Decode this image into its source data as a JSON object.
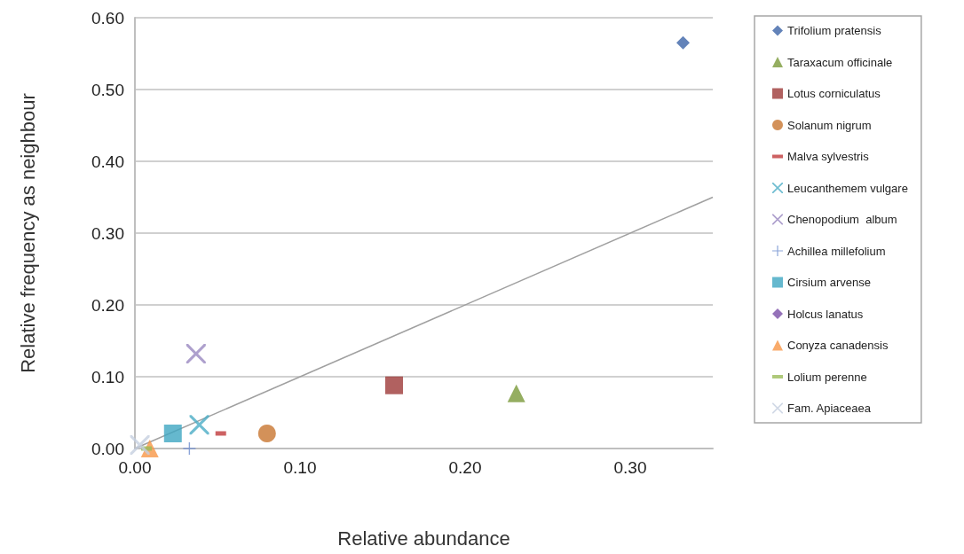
{
  "chart_data": {
    "type": "scatter",
    "xlabel": "Relative abundance",
    "ylabel": "Relative frequency as neighbour",
    "xlim": [
      0,
      0.35
    ],
    "ylim": [
      0,
      0.6
    ],
    "xticks": [
      {
        "value": 0,
        "label": "0.00"
      },
      {
        "value": 0.1,
        "label": "0.10"
      },
      {
        "value": 0.2,
        "label": "0.20"
      },
      {
        "value": 0.3,
        "label": "0.30"
      }
    ],
    "yticks": [
      {
        "value": 0,
        "label": "0.00"
      },
      {
        "value": 0.1,
        "label": "0.10"
      },
      {
        "value": 0.2,
        "label": "0.20"
      },
      {
        "value": 0.3,
        "label": "0.30"
      },
      {
        "value": 0.4,
        "label": "0.40"
      },
      {
        "value": 0.5,
        "label": "0.50"
      },
      {
        "value": 0.6,
        "label": "0.60"
      }
    ],
    "grid": "y",
    "legend": "right",
    "series": [
      {
        "name": "Trifolium pratensis",
        "color": "#3c64a8",
        "marker": "diamond",
        "x": [
          0.332
        ],
        "values": [
          0.565
        ]
      },
      {
        "name": "Taraxacum officinale",
        "color": "#7a9a3a",
        "marker": "triangle",
        "x": [
          0.231
        ],
        "values": [
          0.077
        ]
      },
      {
        "name": "Lotus corniculatus",
        "color": "#9e3a38",
        "marker": "square",
        "x": [
          0.157
        ],
        "values": [
          0.088
        ]
      },
      {
        "name": "Solanum nigrum",
        "color": "#c87530",
        "marker": "circle",
        "x": [
          0.08
        ],
        "values": [
          0.021
        ]
      },
      {
        "name": "Malva sylvestris",
        "color": "#c0393b",
        "x": [
          0.052
        ],
        "values": [
          0.021
        ]
      },
      {
        "name": "Leucanthemem vulgare",
        "color": "#4bacc6",
        "marker": "cross",
        "x": [
          0.039
        ],
        "values": [
          0.033
        ]
      },
      {
        "name": "Chenopodium  album",
        "color": "#9a88c0",
        "marker": "cross",
        "x": [
          0.037
        ],
        "values": [
          0.132
        ]
      },
      {
        "name": "Achillea millefolium",
        "color": "#6f8fd0",
        "marker": "plus",
        "x": [
          0.033
        ],
        "values": [
          0.0
        ]
      },
      {
        "name": "Cirsium arvense",
        "color": "#3ea6c2",
        "marker": "square",
        "x": [
          0.023
        ],
        "values": [
          0.021
        ]
      },
      {
        "name": "Holcus lanatus",
        "color": "#7a4fa8",
        "marker": "diamond",
        "x": [
          null
        ],
        "values": [
          null
        ]
      },
      {
        "name": "Conyza canadensis",
        "color": "#f79646",
        "marker": "triangle",
        "x": [
          0.009
        ],
        "values": [
          0.0
        ]
      },
      {
        "name": "Lolium perenne",
        "color": "#9bbb59",
        "x": [
          0.007
        ],
        "values": [
          0.0
        ]
      },
      {
        "name": "Fam. Apiaceaea",
        "color": "#c5cfe0",
        "marker": "cross",
        "x": [
          0.003
        ],
        "values": [
          0.005
        ]
      },
      {
        "type": "line",
        "color": "#a0a0a0",
        "marker": "none",
        "x": [
          0,
          0.35
        ],
        "values": [
          0,
          0.35
        ]
      }
    ]
  }
}
